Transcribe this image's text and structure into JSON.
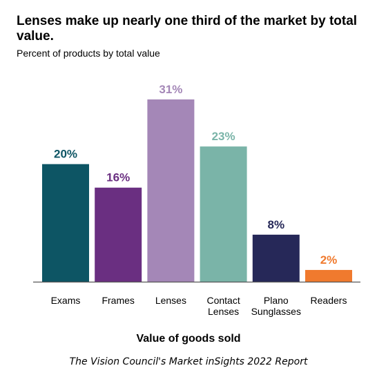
{
  "header": {
    "title": "Lenses make up nearly one third of the market by total value.",
    "subtitle": "Percent of products by total value"
  },
  "footer": {
    "source": "The Vision Council's Market inSights 2022 Report"
  },
  "chart_data": {
    "type": "bar",
    "title": "Lenses make up nearly one third of the market by total value.",
    "subtitle": "Percent of products by total value",
    "xlabel": "Value of goods sold",
    "ylabel": "",
    "grid": false,
    "legend": "none",
    "categories": [
      [
        "Exams"
      ],
      [
        "Frames"
      ],
      [
        "Lenses"
      ],
      [
        "Contact",
        "Lenses"
      ],
      [
        "Plano",
        "Sunglasses"
      ],
      [
        "Readers"
      ]
    ],
    "values": [
      20,
      16,
      31,
      23,
      8,
      2
    ],
    "data_labels": [
      "20%",
      "16%",
      "31%",
      "23%",
      "8%",
      "2%"
    ],
    "colors": [
      "#0d5564",
      "#6a2f81",
      "#a487b7",
      "#7ab4a8",
      "#262858",
      "#f07a2e"
    ],
    "ylim": [
      0,
      31
    ]
  }
}
